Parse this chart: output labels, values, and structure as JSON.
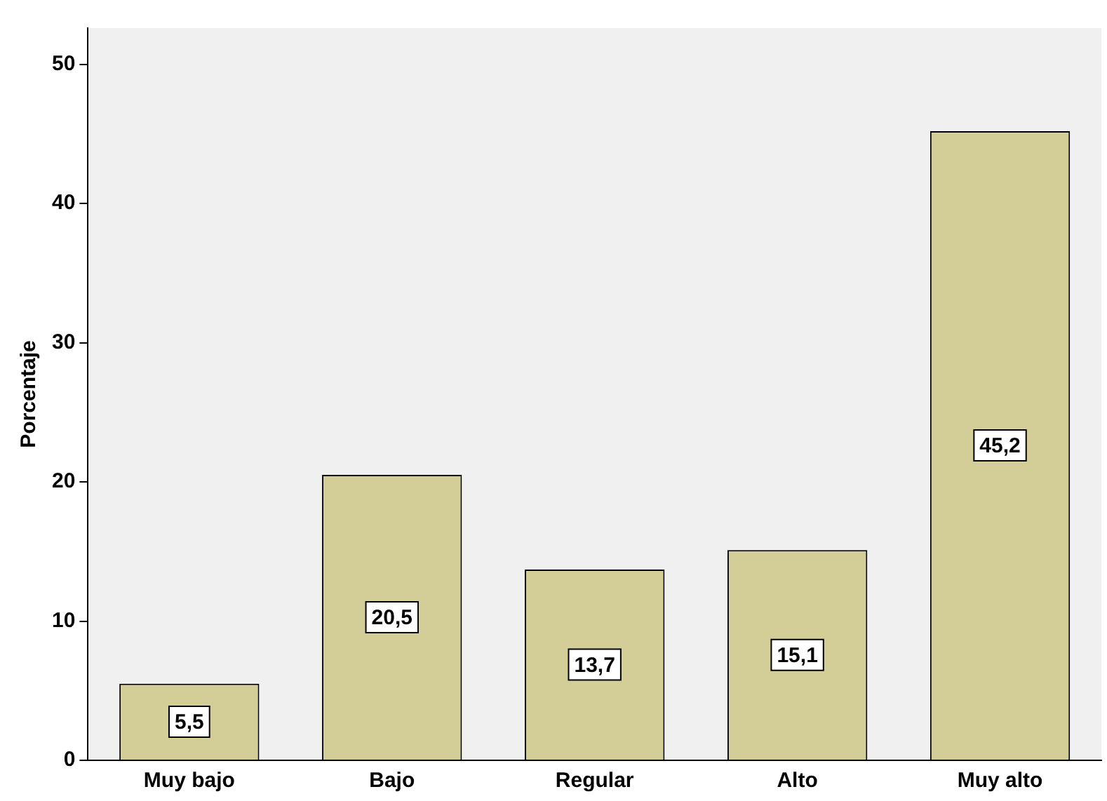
{
  "chart_data": {
    "type": "bar",
    "ylabel": "Porcentaje",
    "categories": [
      "Muy bajo",
      "Bajo",
      "Regular",
      "Alto",
      "Muy alto"
    ],
    "values": [
      5.5,
      20.5,
      13.7,
      15.1,
      45.2
    ],
    "value_labels": [
      "5,5",
      "20,5",
      "13,7",
      "15,1",
      "45,2"
    ],
    "color": "#d3ce97",
    "ylim": [
      0,
      52.6
    ],
    "yticks": [
      0,
      10,
      20,
      30,
      40,
      50
    ],
    "grid": false,
    "legend": false
  }
}
